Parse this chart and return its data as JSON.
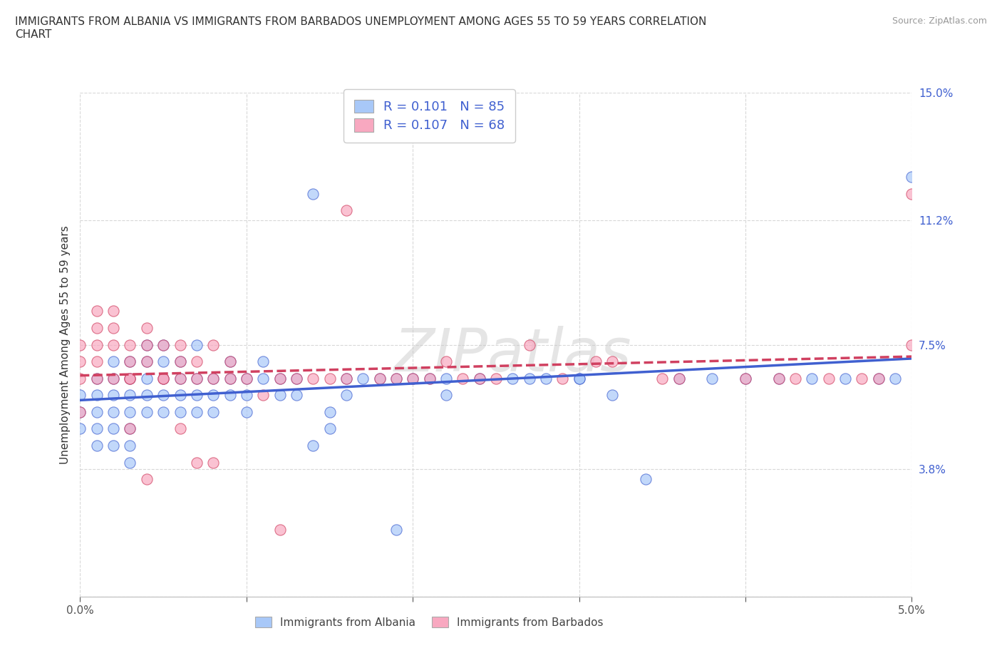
{
  "title": "IMMIGRANTS FROM ALBANIA VS IMMIGRANTS FROM BARBADOS UNEMPLOYMENT AMONG AGES 55 TO 59 YEARS CORRELATION\nCHART",
  "source": "Source: ZipAtlas.com",
  "ylabel": "Unemployment Among Ages 55 to 59 years",
  "xlim": [
    0.0,
    0.05
  ],
  "ylim": [
    0.0,
    0.15
  ],
  "xticks": [
    0.0,
    0.01,
    0.02,
    0.03,
    0.04,
    0.05
  ],
  "xtick_labels": [
    "0.0%",
    "",
    "",
    "",
    "",
    "5.0%"
  ],
  "yticks": [
    0.0,
    0.038,
    0.075,
    0.112,
    0.15
  ],
  "ytick_labels": [
    "",
    "3.8%",
    "7.5%",
    "11.2%",
    "15.0%"
  ],
  "albania_color": "#a8c8f8",
  "barbados_color": "#f8a8c0",
  "albania_line_color": "#4060d0",
  "barbados_line_color": "#d04060",
  "albania_R": 0.101,
  "albania_N": 85,
  "barbados_R": 0.107,
  "barbados_N": 68,
  "watermark": "ZIPatlas",
  "background_color": "#ffffff",
  "grid_color": "#d8d8d8",
  "albania_scatter_x": [
    0.0,
    0.0,
    0.0,
    0.001,
    0.001,
    0.001,
    0.001,
    0.001,
    0.002,
    0.002,
    0.002,
    0.002,
    0.002,
    0.002,
    0.003,
    0.003,
    0.003,
    0.003,
    0.003,
    0.003,
    0.003,
    0.004,
    0.004,
    0.004,
    0.004,
    0.004,
    0.005,
    0.005,
    0.005,
    0.005,
    0.005,
    0.006,
    0.006,
    0.006,
    0.006,
    0.007,
    0.007,
    0.007,
    0.007,
    0.008,
    0.008,
    0.008,
    0.009,
    0.009,
    0.009,
    0.01,
    0.01,
    0.01,
    0.011,
    0.011,
    0.012,
    0.012,
    0.013,
    0.013,
    0.014,
    0.015,
    0.015,
    0.016,
    0.016,
    0.017,
    0.018,
    0.019,
    0.02,
    0.021,
    0.022,
    0.024,
    0.026,
    0.027,
    0.028,
    0.03,
    0.032,
    0.034,
    0.036,
    0.038,
    0.04,
    0.042,
    0.044,
    0.046,
    0.048,
    0.049,
    0.05,
    0.03,
    0.022,
    0.019,
    0.014
  ],
  "albania_scatter_y": [
    0.055,
    0.06,
    0.05,
    0.055,
    0.06,
    0.065,
    0.05,
    0.045,
    0.055,
    0.06,
    0.065,
    0.07,
    0.05,
    0.045,
    0.055,
    0.06,
    0.065,
    0.07,
    0.05,
    0.045,
    0.04,
    0.06,
    0.065,
    0.055,
    0.07,
    0.075,
    0.055,
    0.065,
    0.06,
    0.07,
    0.075,
    0.06,
    0.065,
    0.055,
    0.07,
    0.065,
    0.06,
    0.055,
    0.075,
    0.065,
    0.06,
    0.055,
    0.065,
    0.06,
    0.07,
    0.065,
    0.06,
    0.055,
    0.065,
    0.07,
    0.06,
    0.065,
    0.065,
    0.06,
    0.045,
    0.05,
    0.055,
    0.06,
    0.065,
    0.065,
    0.065,
    0.02,
    0.065,
    0.065,
    0.06,
    0.065,
    0.065,
    0.065,
    0.065,
    0.065,
    0.06,
    0.035,
    0.065,
    0.065,
    0.065,
    0.065,
    0.065,
    0.065,
    0.065,
    0.065,
    0.125,
    0.065,
    0.065,
    0.065,
    0.12
  ],
  "barbados_scatter_x": [
    0.0,
    0.0,
    0.0,
    0.0,
    0.001,
    0.001,
    0.001,
    0.001,
    0.001,
    0.002,
    0.002,
    0.002,
    0.002,
    0.003,
    0.003,
    0.003,
    0.003,
    0.004,
    0.004,
    0.004,
    0.005,
    0.005,
    0.005,
    0.006,
    0.006,
    0.006,
    0.007,
    0.007,
    0.008,
    0.008,
    0.009,
    0.009,
    0.01,
    0.011,
    0.012,
    0.013,
    0.014,
    0.015,
    0.016,
    0.018,
    0.02,
    0.021,
    0.022,
    0.023,
    0.025,
    0.027,
    0.029,
    0.032,
    0.036,
    0.04,
    0.043,
    0.045,
    0.048,
    0.05,
    0.003,
    0.004,
    0.006,
    0.007,
    0.008,
    0.012,
    0.016,
    0.019,
    0.024,
    0.031,
    0.035,
    0.042,
    0.047,
    0.05
  ],
  "barbados_scatter_y": [
    0.055,
    0.065,
    0.07,
    0.075,
    0.065,
    0.07,
    0.075,
    0.08,
    0.085,
    0.065,
    0.075,
    0.08,
    0.085,
    0.065,
    0.07,
    0.075,
    0.065,
    0.07,
    0.075,
    0.08,
    0.065,
    0.075,
    0.065,
    0.065,
    0.075,
    0.07,
    0.065,
    0.07,
    0.065,
    0.075,
    0.065,
    0.07,
    0.065,
    0.06,
    0.065,
    0.065,
    0.065,
    0.065,
    0.065,
    0.065,
    0.065,
    0.065,
    0.07,
    0.065,
    0.065,
    0.075,
    0.065,
    0.07,
    0.065,
    0.065,
    0.065,
    0.065,
    0.065,
    0.075,
    0.05,
    0.035,
    0.05,
    0.04,
    0.04,
    0.02,
    0.115,
    0.065,
    0.065,
    0.07,
    0.065,
    0.065,
    0.065,
    0.12
  ]
}
